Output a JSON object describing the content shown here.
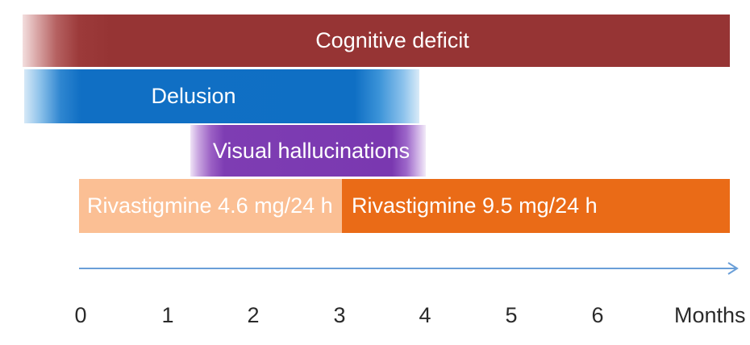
{
  "bars": {
    "cognitive_deficit": "Cognitive deficit",
    "delusion": "Delusion",
    "visual_hallucinations": "Visual hallucinations",
    "rivastigmine_low": "Rivastigmine 4.6 mg/24 h",
    "rivastigmine_high": "Rivastigmine 9.5 mg/24 h"
  },
  "axis": {
    "ticks": [
      "0",
      "1",
      "2",
      "3",
      "4",
      "5",
      "6"
    ],
    "unit_label": "Months"
  },
  "colors": {
    "cognitive_deficit": "#963434",
    "delusion": "#0f6fc4",
    "visual_hallucinations": "#7a38b0",
    "rivastigmine_low": "#fbbf94",
    "rivastigmine_high": "#ea6b17",
    "axis_line": "#6a9fd8"
  }
}
